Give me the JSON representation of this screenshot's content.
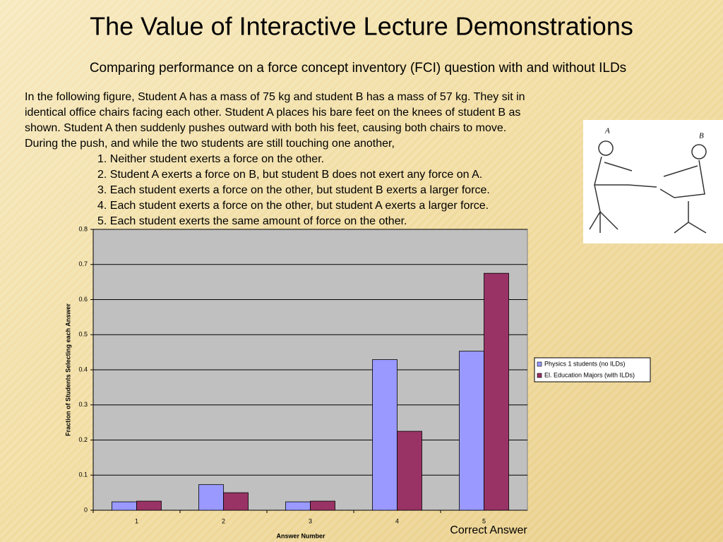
{
  "slide": {
    "title": "The Value of Interactive Lecture Demonstrations",
    "subtitle": "Comparing performance on a force concept inventory (FCI) question with and without ILDs",
    "question_lines": [
      "In the following figure, Student A has a mass of 75 kg and student B has a mass of 57 kg.  They sit in",
      "identical office chairs facing each other. Student A places his bare feet on the knees of student B as",
      "shown. Student A then suddenly pushes outward with both his feet, causing both chairs to move.",
      "During the push, and while the two students are still touching one another,"
    ],
    "options": [
      "1. Neither student exerts a force on the other.",
      "2. Student A exerts a force on B, but student B does not exert any force on A.",
      "3. Each student exerts a force on the other, but student B exerts a larger force.",
      "4. Each student exerts a force on the other, but student A exerts a larger force.",
      "5. Each student exerts the same amount of force on the other."
    ],
    "figure_labels": [
      "A",
      "B"
    ]
  },
  "chart_data": {
    "type": "bar",
    "x_label": "Answer Number",
    "y_label": "Fraction of Students Selecting each Answer",
    "categories": [
      "1",
      "2",
      "3",
      "4",
      "5"
    ],
    "series": [
      {
        "name": "Physics 1 students (no ILDs)",
        "color": "#9999ff",
        "values": [
          0.024,
          0.073,
          0.024,
          0.429,
          0.453
        ]
      },
      {
        "name": "El. Education Majors (with ILDs)",
        "color": "#993366",
        "values": [
          0.026,
          0.05,
          0.026,
          0.225,
          0.675
        ]
      }
    ],
    "ylim": [
      0,
      0.8
    ],
    "yticks": [
      0,
      0.1,
      0.2,
      0.3,
      0.4,
      0.5,
      0.6,
      0.7,
      0.8
    ],
    "grid": true,
    "legend": "right",
    "annotation": "Correct Answer"
  }
}
